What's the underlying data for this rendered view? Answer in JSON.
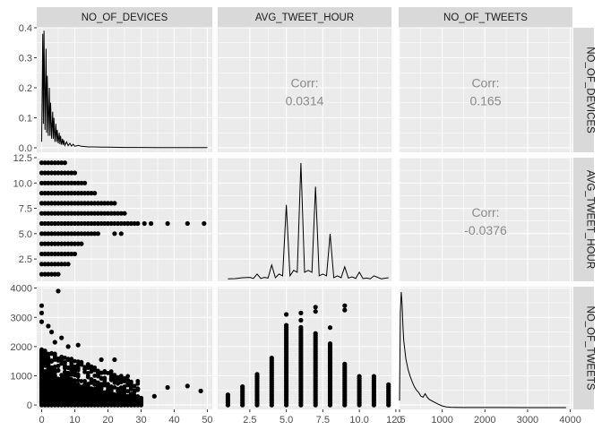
{
  "chart_data": {
    "type": "pairs",
    "variables": [
      "NO_OF_DEVICES",
      "AVG_TWEET_HOUR",
      "NO_OF_TWEETS"
    ],
    "grid": true,
    "colors": {
      "panel": "#ebebeb",
      "strip": "#d9d9d9",
      "grid": "#ffffff",
      "mark": "#000000",
      "corr": "#8a8a8a",
      "tick": "#4d4d4d"
    },
    "correlations": [
      {
        "row": 0,
        "col": 1,
        "label": "Corr:",
        "value": "0.0314"
      },
      {
        "row": 0,
        "col": 2,
        "label": "Corr:",
        "value": "0.165"
      },
      {
        "row": 1,
        "col": 2,
        "label": "Corr:",
        "value": "-0.0376"
      }
    ],
    "axes": {
      "x": [
        {
          "range": [
            -1.5,
            51.5
          ],
          "ticks": [
            0,
            10,
            20,
            30,
            40,
            50
          ],
          "tick_labels": [
            "0",
            "10",
            "20",
            "30",
            "40",
            "50"
          ]
        },
        {
          "range": [
            0.3,
            12.2
          ],
          "ticks": [
            2.5,
            5.0,
            7.5,
            10.0,
            12.5
          ],
          "tick_labels": [
            "2.5",
            "5.0",
            "7.5",
            "10.0",
            "12.5"
          ]
        },
        {
          "range": [
            -20,
            4050
          ],
          "ticks": [
            0,
            1000,
            2000,
            3000,
            4000
          ],
          "tick_labels": [
            "0",
            "1000",
            "2000",
            "3000",
            "4000"
          ]
        }
      ],
      "y": [
        {
          "range": [
            -0.015,
            0.4
          ],
          "ticks": [
            0.0,
            0.1,
            0.2,
            0.3,
            0.4
          ],
          "tick_labels": [
            "0.0",
            "0.1",
            "0.2",
            "0.3",
            "0.4"
          ]
        },
        {
          "range": [
            0.3,
            12.5
          ],
          "ticks": [
            2.5,
            5.0,
            7.5,
            10.0,
            12.5
          ],
          "tick_labels": [
            "2.5",
            "5.0",
            "7.5",
            "10.0",
            "12.5"
          ]
        },
        {
          "range": [
            -150,
            4050
          ],
          "ticks": [
            0,
            1000,
            2000,
            3000,
            4000
          ],
          "tick_labels": [
            "0",
            "1000",
            "2000",
            "3000",
            "4000"
          ]
        }
      ]
    },
    "densities": {
      "NO_OF_DEVICES": {
        "x": [
          0,
          0.3,
          0.5,
          0.7,
          1,
          1.3,
          1.5,
          1.7,
          2,
          2.3,
          2.5,
          2.7,
          3,
          3.3,
          3.5,
          3.7,
          4,
          4.3,
          4.5,
          4.7,
          5,
          5.3,
          5.5,
          5.7,
          6,
          6.3,
          6.5,
          6.7,
          7,
          7.5,
          8,
          8.5,
          9,
          9.5,
          10,
          11,
          12,
          13,
          14,
          16,
          18,
          20,
          25,
          30,
          35,
          40,
          45,
          50
        ],
        "y": [
          0.02,
          0.38,
          0.08,
          0.39,
          0.06,
          0.33,
          0.05,
          0.24,
          0.04,
          0.2,
          0.04,
          0.15,
          0.03,
          0.12,
          0.03,
          0.1,
          0.02,
          0.08,
          0.02,
          0.06,
          0.015,
          0.05,
          0.012,
          0.04,
          0.01,
          0.03,
          0.01,
          0.025,
          0.008,
          0.02,
          0.007,
          0.015,
          0.006,
          0.012,
          0.005,
          0.008,
          0.005,
          0.004,
          0.003,
          0.003,
          0.002,
          0.002,
          0.001,
          0.001,
          0.0008,
          0.0006,
          0.0005,
          0.0004
        ]
      },
      "AVG_TWEET_HOUR": {
        "x": [
          1,
          1.5,
          2,
          2.5,
          2.75,
          3,
          3.25,
          3.5,
          3.75,
          4,
          4.25,
          4.5,
          4.75,
          5,
          5.25,
          5.5,
          5.75,
          6,
          6.25,
          6.5,
          6.75,
          7,
          7.25,
          7.5,
          7.75,
          8,
          8.25,
          8.5,
          8.75,
          9,
          9.25,
          9.5,
          9.75,
          10,
          10.25,
          10.5,
          10.75,
          11,
          11.5,
          12
        ],
        "y": [
          0.004,
          0.005,
          0.01,
          0.012,
          0.006,
          0.03,
          0.006,
          0.012,
          0.008,
          0.08,
          0.01,
          0.03,
          0.02,
          0.41,
          0.02,
          0.05,
          0.04,
          0.64,
          0.04,
          0.05,
          0.04,
          0.51,
          0.02,
          0.03,
          0.02,
          0.25,
          0.01,
          0.02,
          0.01,
          0.07,
          0.008,
          0.015,
          0.006,
          0.04,
          0.005,
          0.008,
          0.004,
          0.02,
          0.004,
          0.01
        ]
      },
      "NO_OF_TWEETS": {
        "x": [
          0,
          20,
          40,
          60,
          80,
          100,
          150,
          200,
          250,
          300,
          350,
          400,
          450,
          500,
          550,
          600,
          650,
          700,
          800,
          900,
          1000,
          1100,
          1200,
          1500,
          2000,
          2500,
          3000,
          3500,
          3900
        ],
        "y": [
          0.06,
          0.82,
          1.0,
          0.9,
          0.7,
          0.58,
          0.42,
          0.33,
          0.27,
          0.22,
          0.18,
          0.15,
          0.13,
          0.1,
          0.09,
          0.12,
          0.09,
          0.07,
          0.05,
          0.03,
          0.015,
          0.006,
          0.003,
          0.001,
          0.0006,
          0.0004,
          0.0003,
          0.0002,
          0.0002
        ]
      }
    }
  }
}
